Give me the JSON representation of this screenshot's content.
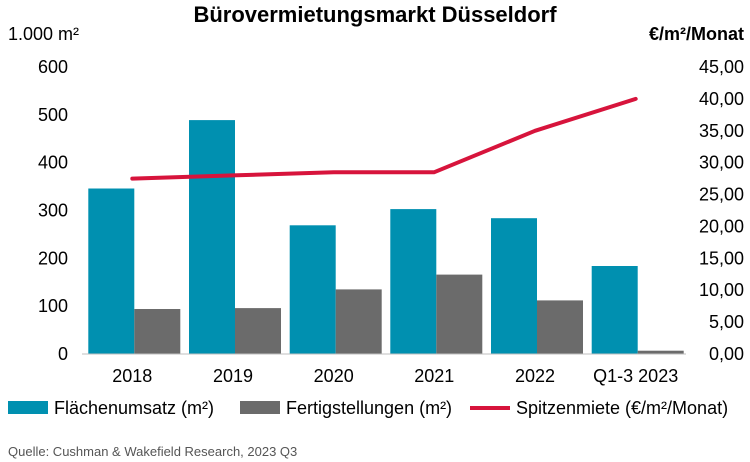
{
  "chart_data": {
    "type": "bar",
    "title": "Bürovermietungsmarkt Düsseldorf",
    "left_axis_unit": "1.000 m²",
    "right_axis_unit": "€/m²/Monat",
    "categories": [
      "2018",
      "2019",
      "2020",
      "2021",
      "2022",
      "Q1-3 2023"
    ],
    "series": [
      {
        "name": "Flächenumsatz (m²)",
        "type": "bar",
        "axis": "left",
        "color": "#0090b0",
        "values": [
          346,
          489,
          269,
          303,
          284,
          184
        ]
      },
      {
        "name": "Fertigstellungen (m²)",
        "type": "bar",
        "axis": "left",
        "color": "#6b6b6b",
        "values": [
          94,
          96,
          135,
          166,
          112,
          7
        ]
      },
      {
        "name": "Spitzenmiete (€/m²/Monat)",
        "type": "line",
        "axis": "right",
        "color": "#d7143c",
        "values": [
          27.5,
          28.0,
          28.5,
          28.5,
          35.0,
          40.0
        ]
      }
    ],
    "ylim_left": [
      0,
      600
    ],
    "yticks_left": [
      "0",
      "100",
      "200",
      "300",
      "400",
      "500",
      "600"
    ],
    "ylim_right": [
      0,
      45
    ],
    "yticks_right": [
      "0,00",
      "5,00",
      "10,00",
      "15,00",
      "20,00",
      "25,00",
      "30,00",
      "35,00",
      "40,00",
      "45,00"
    ],
    "source": "Quelle: Cushman & Wakefield Research, 2023 Q3"
  }
}
